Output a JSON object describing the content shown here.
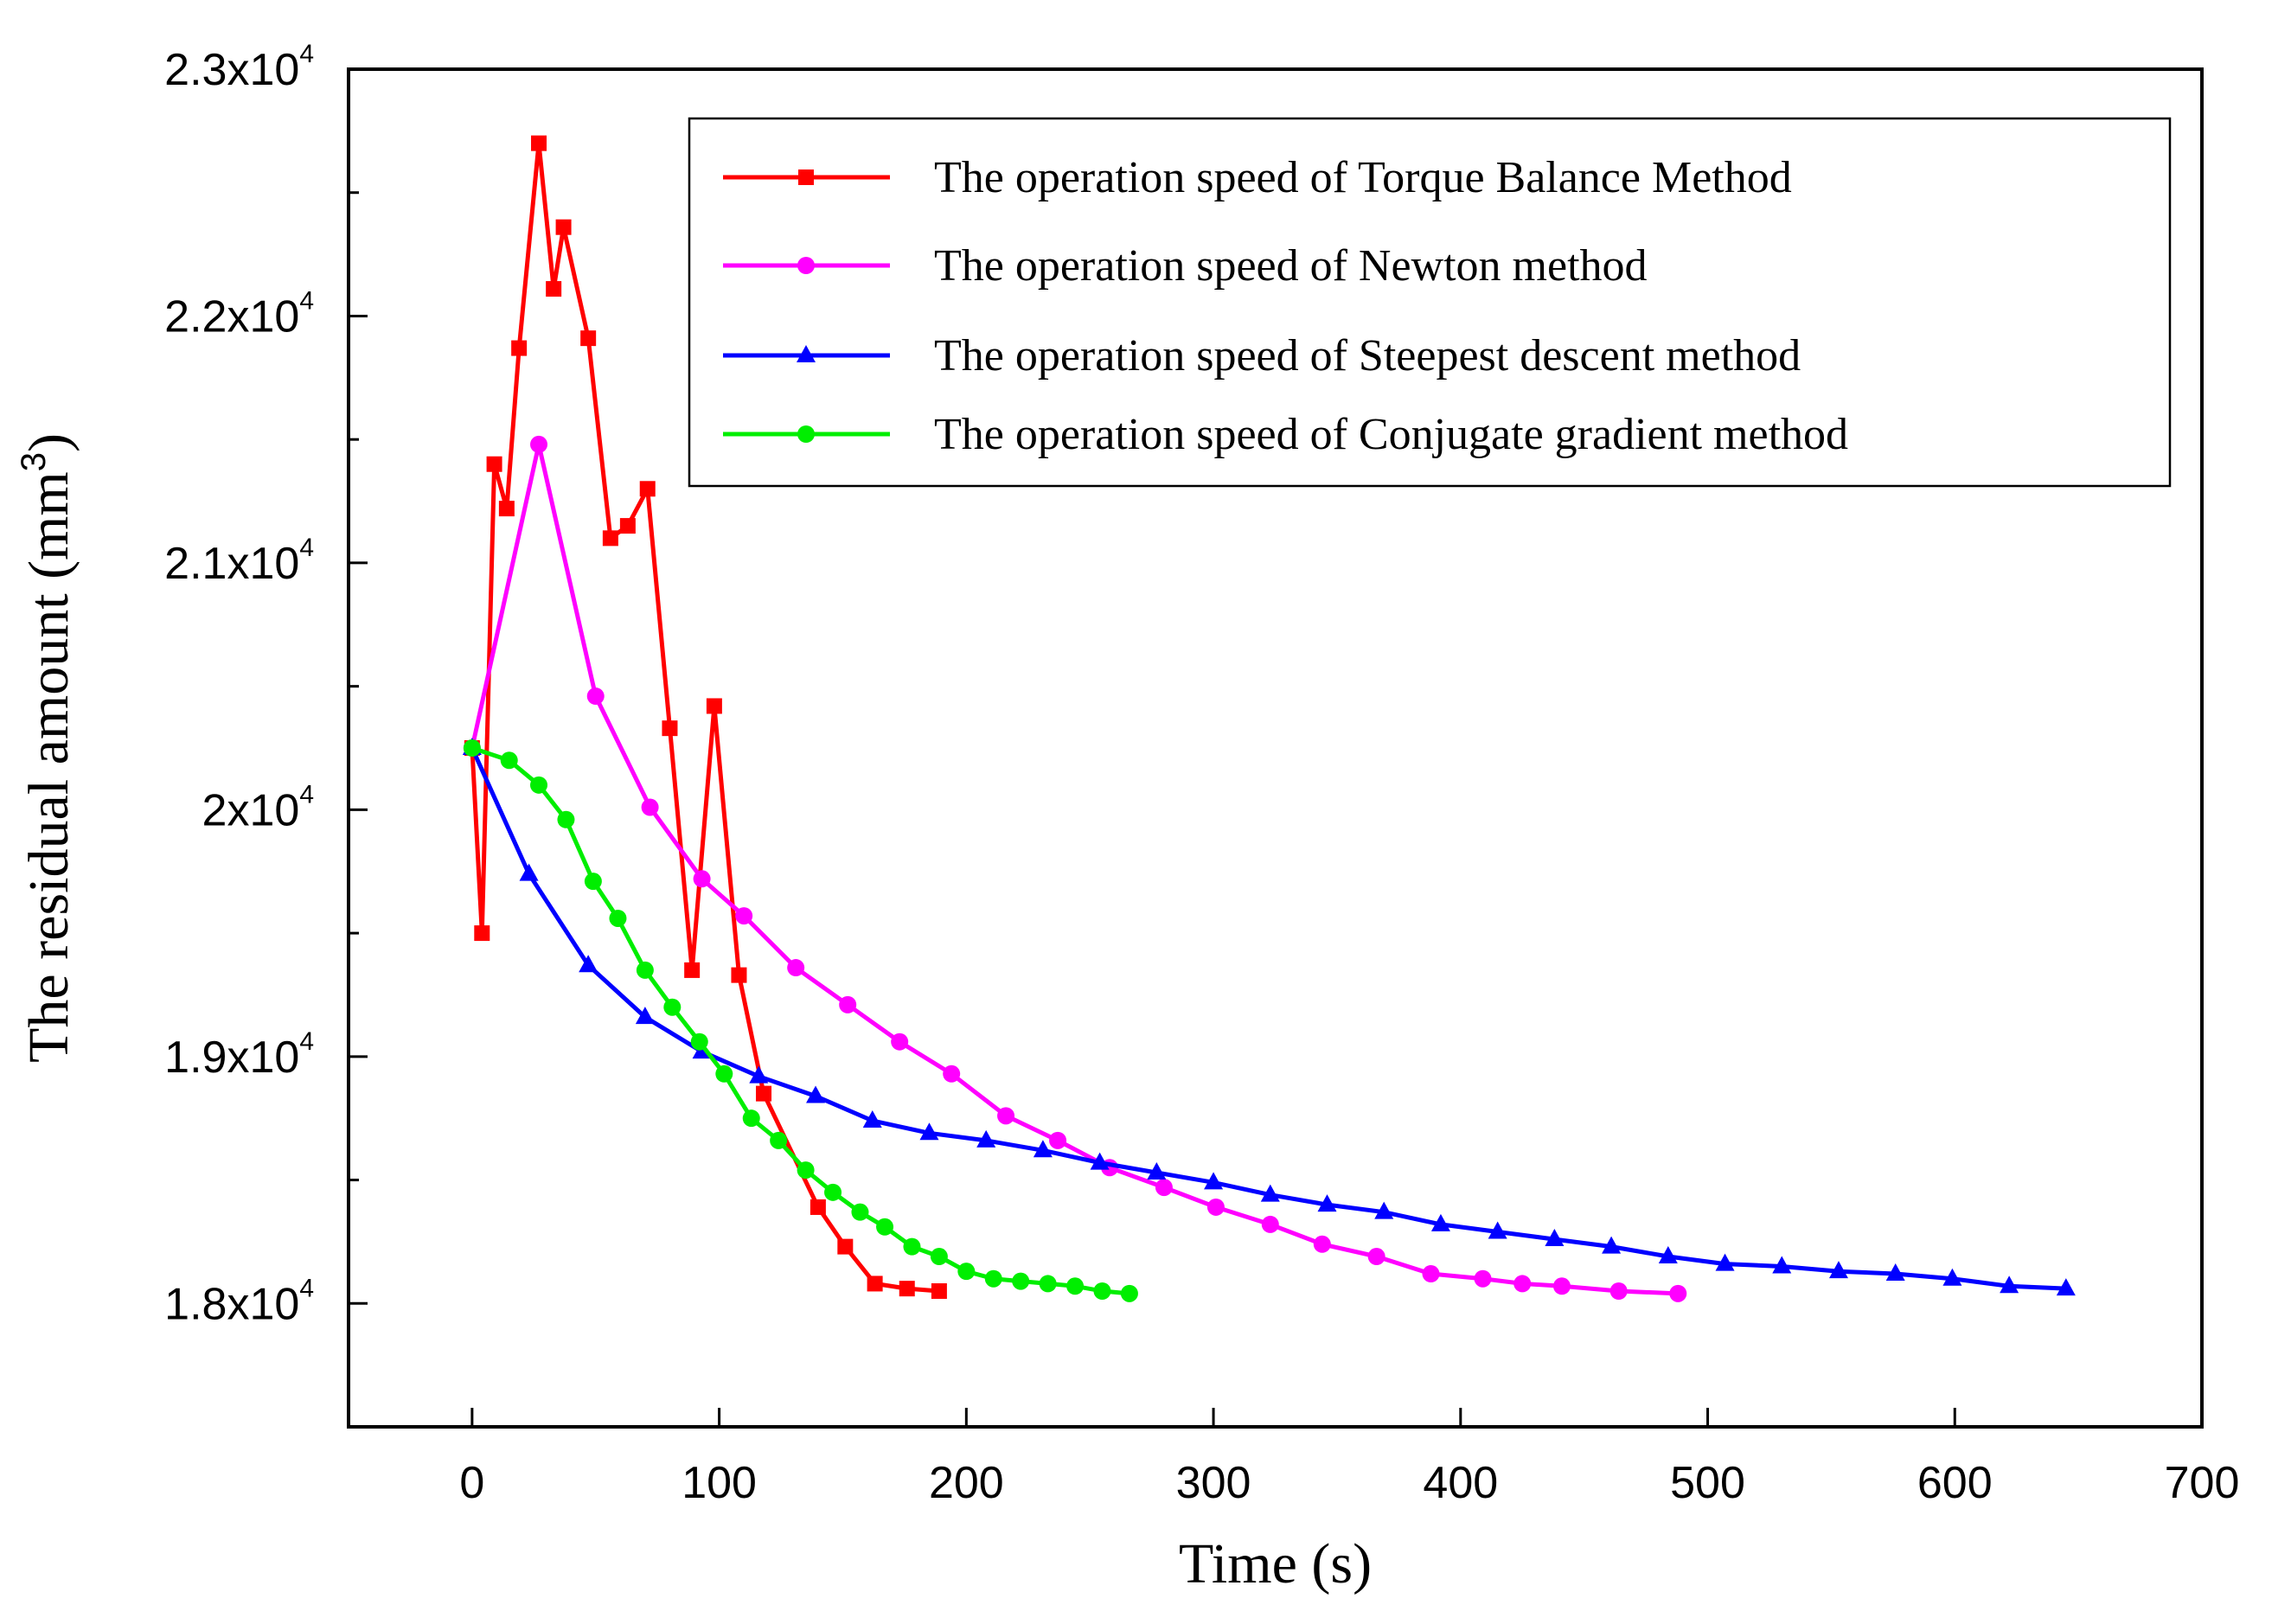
{
  "chart_data": {
    "type": "line",
    "title": "",
    "xlabel": "Time (s)",
    "ylabel_main": "The residual amount (mm",
    "ylabel_sup": "3",
    "ylabel_tail": ")",
    "xlim": [
      -50,
      700
    ],
    "ylim": [
      17500,
      23000
    ],
    "x_ticks": [
      0,
      100,
      200,
      300,
      400,
      500,
      600,
      700
    ],
    "y_ticks": [
      {
        "value": 18000,
        "mantissa": "1.8x10",
        "exp": "4"
      },
      {
        "value": 19000,
        "mantissa": "1.9x10",
        "exp": "4"
      },
      {
        "value": 20000,
        "mantissa": "2x10",
        "exp": "4"
      },
      {
        "value": 21000,
        "mantissa": "2.1x10",
        "exp": "4"
      },
      {
        "value": 22000,
        "mantissa": "2.2x10",
        "exp": "4"
      },
      {
        "value": 23000,
        "mantissa": "2.3x10",
        "exp": "4"
      }
    ],
    "legend_position": "top-right",
    "series": [
      {
        "name": "The operation speed of Torque Balance Method",
        "color": "#ff0000",
        "marker": "square",
        "x": [
          0,
          4,
          9,
          14,
          19,
          27,
          33,
          37,
          47,
          56,
          63,
          71,
          80,
          89,
          98,
          108,
          118,
          140,
          151,
          163,
          176,
          189
        ],
        "y": [
          20250,
          19500,
          21400,
          21220,
          21870,
          22700,
          22110,
          22360,
          21910,
          21100,
          21150,
          21300,
          20330,
          19350,
          20420,
          19330,
          18850,
          18390,
          18230,
          18080,
          18060,
          18050
        ]
      },
      {
        "name": "The operation speed of Newton method",
        "color": "#ff00ff",
        "marker": "circle",
        "x": [
          0,
          27,
          50,
          72,
          93,
          110,
          131,
          152,
          173,
          194,
          216,
          237,
          258,
          280,
          301,
          323,
          344,
          366,
          388,
          409,
          425,
          441,
          464,
          488
        ],
        "y": [
          20250,
          21480,
          20460,
          20010,
          19720,
          19570,
          19360,
          19210,
          19060,
          18930,
          18760,
          18660,
          18550,
          18470,
          18390,
          18320,
          18240,
          18190,
          18120,
          18100,
          18080,
          18070,
          18050,
          18040
        ]
      },
      {
        "name": "The operation speed of Steepest descent method",
        "color": "#0000ff",
        "marker": "triangle",
        "x": [
          0,
          23,
          47,
          70,
          93,
          116,
          139,
          162,
          185,
          208,
          231,
          254,
          277,
          300,
          323,
          346,
          369,
          392,
          415,
          438,
          461,
          484,
          507,
          530,
          553,
          576,
          599,
          622,
          645
        ],
        "y": [
          20250,
          19740,
          19370,
          19160,
          19020,
          18920,
          18840,
          18740,
          18690,
          18660,
          18620,
          18570,
          18530,
          18490,
          18440,
          18400,
          18370,
          18320,
          18290,
          18260,
          18230,
          18190,
          18160,
          18150,
          18130,
          18120,
          18100,
          18070,
          18060
        ]
      },
      {
        "name": "The operation speed of Conjugate gradient method",
        "color": "#00ee00",
        "marker": "circle",
        "x": [
          0,
          15,
          27,
          38,
          49,
          59,
          70,
          81,
          92,
          102,
          113,
          124,
          135,
          146,
          157,
          167,
          178,
          189,
          200,
          211,
          222,
          233,
          244,
          255,
          266
        ],
        "y": [
          20250,
          20200,
          20100,
          19960,
          19710,
          19560,
          19350,
          19200,
          19060,
          18930,
          18750,
          18660,
          18540,
          18450,
          18370,
          18310,
          18230,
          18190,
          18130,
          18100,
          18090,
          18080,
          18070,
          18050,
          18040
        ]
      }
    ]
  }
}
